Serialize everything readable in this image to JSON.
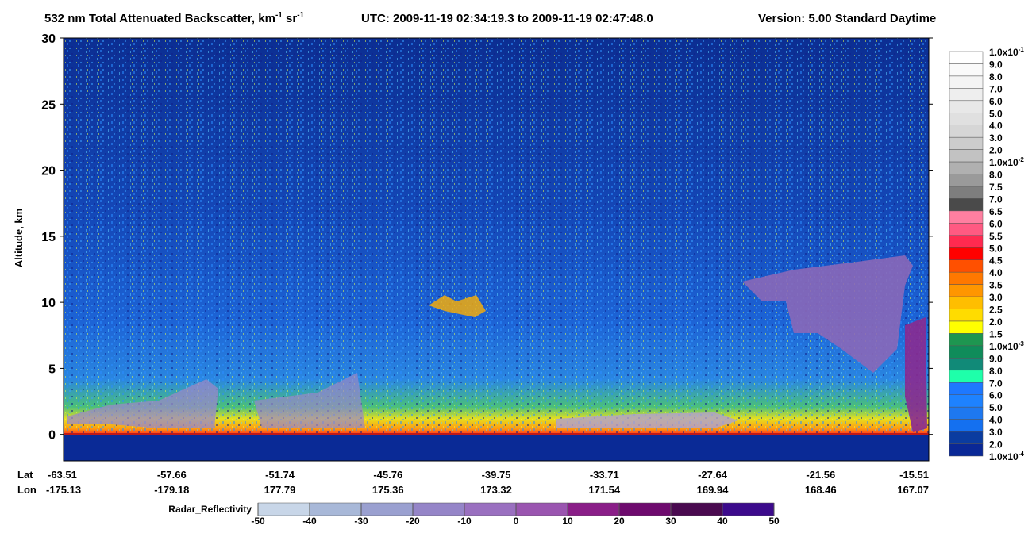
{
  "chart_data": {
    "type": "heatmap",
    "title": [
      "532 nm Total Attenuated Backscatter, km",
      "-1",
      " sr",
      "-1",
      "UTC:  2009-11-19 02:34:19.3  to  2009-11-19 02:47:48.0",
      "Version: 5.00  Standard  Daytime"
    ],
    "y_label": "Altitude, km",
    "ylim": [
      -2,
      30
    ],
    "yticks": [
      0,
      5,
      10,
      15,
      20,
      25,
      30
    ],
    "x_row_labels": [
      "Lat",
      "Lon"
    ],
    "lat": [
      "-63.51",
      "-57.66",
      "-51.74",
      "-45.76",
      "-39.75",
      "-33.71",
      "-27.64",
      "-21.56",
      "-15.51"
    ],
    "lon": [
      "-175.13",
      "-179.18",
      "177.79",
      "175.36",
      "173.32",
      "171.54",
      "169.94",
      "168.46",
      "167.07"
    ],
    "colorbar": {
      "labels": [
        {
          "text": "1.0x10",
          "sup": "-1"
        },
        "9.0",
        "8.0",
        "7.0",
        "6.0",
        "5.0",
        "4.0",
        "3.0",
        "2.0",
        {
          "text": "1.0x10",
          "sup": "-2"
        },
        "8.0",
        "7.5",
        "7.0",
        "6.5",
        "6.0",
        "5.5",
        "5.0",
        "4.5",
        "4.0",
        "3.5",
        "3.0",
        "2.5",
        "2.0",
        "1.5",
        {
          "text": "1.0x10",
          "sup": "-3"
        },
        "9.0",
        "8.0",
        "7.0",
        "6.0",
        "5.0",
        "4.0",
        "3.0",
        "2.0",
        {
          "text": "1.0x10",
          "sup": "-4"
        }
      ],
      "colors": [
        "#ffffff",
        "#fafafa",
        "#f4f4f4",
        "#eeeeee",
        "#e8e8e8",
        "#e0e0e0",
        "#d6d6d6",
        "#cccccc",
        "#c2c2c2",
        "#b0b0b0",
        "#9a9a9a",
        "#7e7e7e",
        "#4a4a4a",
        "#ff7fa0",
        "#ff5a82",
        "#ff2a50",
        "#ff0000",
        "#ff5000",
        "#ff7800",
        "#ff9600",
        "#ffbe00",
        "#ffdc00",
        "#ffff00",
        "#1e9650",
        "#0f8c5a",
        "#118a78",
        "#1effaa",
        "#1e78ff",
        "#1e82ff",
        "#1e78f0",
        "#1470f0",
        "#0a3ca0",
        "#0a2896"
      ]
    },
    "radar": {
      "label": "Radar_Reflectivity",
      "ticks": [
        -50,
        -40,
        -30,
        -20,
        -10,
        0,
        10,
        20,
        30,
        40,
        50
      ],
      "colors": [
        "#c8d6e8",
        "#a8b8d8",
        "#9aa0d0",
        "#9585c8",
        "#9a70c0",
        "#9a55b0",
        "#8a1e88",
        "#6e0a6e",
        "#4a0a50",
        "#3c0a8c"
      ]
    }
  }
}
